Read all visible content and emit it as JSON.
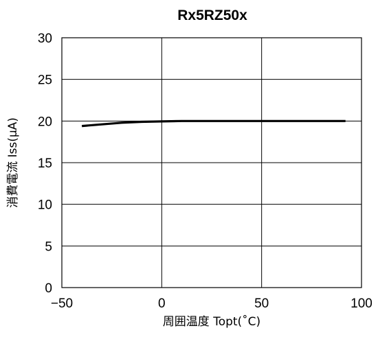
{
  "chart_data": {
    "type": "line",
    "title": "Rx5RZ50x",
    "xlabel": "周囲温度 Topt(˚C)",
    "ylabel": "消費電流 Iss(μA)",
    "xlim": [
      -50,
      100
    ],
    "ylim": [
      0,
      30
    ],
    "x_ticks": [
      -50,
      0,
      50,
      100
    ],
    "x_tick_labels": [
      "−50",
      "0",
      "50",
      "100"
    ],
    "y_ticks": [
      0,
      5,
      10,
      15,
      20,
      25,
      30
    ],
    "y_tick_labels": [
      "0",
      "5",
      "10",
      "15",
      "20",
      "25",
      "30"
    ],
    "grid": true,
    "legend": "none",
    "series": [
      {
        "color": "#000000",
        "x": [
          -40,
          -30,
          -20,
          -10,
          0,
          10,
          25,
          50,
          75,
          92
        ],
        "y": [
          19.4,
          19.6,
          19.8,
          19.9,
          19.95,
          20.0,
          20.0,
          20.0,
          20.0,
          20.0
        ]
      }
    ]
  }
}
